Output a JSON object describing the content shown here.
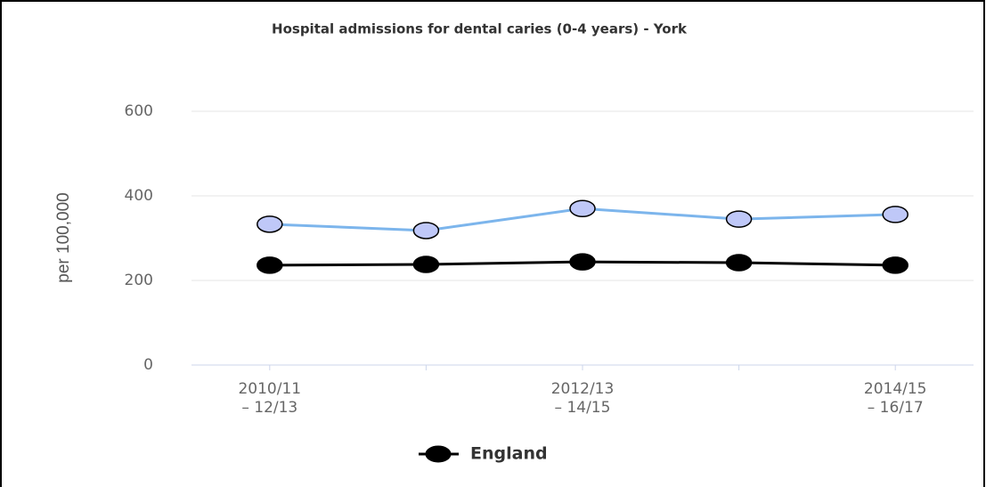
{
  "chart_data": {
    "type": "line",
    "title": "Hospital admissions for dental caries (0-4 years) - York",
    "y_label": "per 100,000",
    "categories": [
      [
        "2010/11",
        "– 12/13"
      ],
      null,
      [
        "2012/13",
        "– 14/15"
      ],
      null,
      [
        "2014/15",
        "– 16/17"
      ]
    ],
    "series": [
      {
        "color": "#7cb5ec",
        "marker_color": "#bfc8f8",
        "values": [
          333,
          318,
          370,
          345,
          356
        ]
      },
      {
        "name": "England",
        "color": "#000000",
        "marker_color": "#000000",
        "values": [
          236,
          238,
          244,
          242,
          236
        ]
      }
    ],
    "ylim": [
      0,
      600
    ],
    "yticks": [
      0,
      200,
      400,
      600
    ],
    "grid": true,
    "legend": "bottom"
  }
}
